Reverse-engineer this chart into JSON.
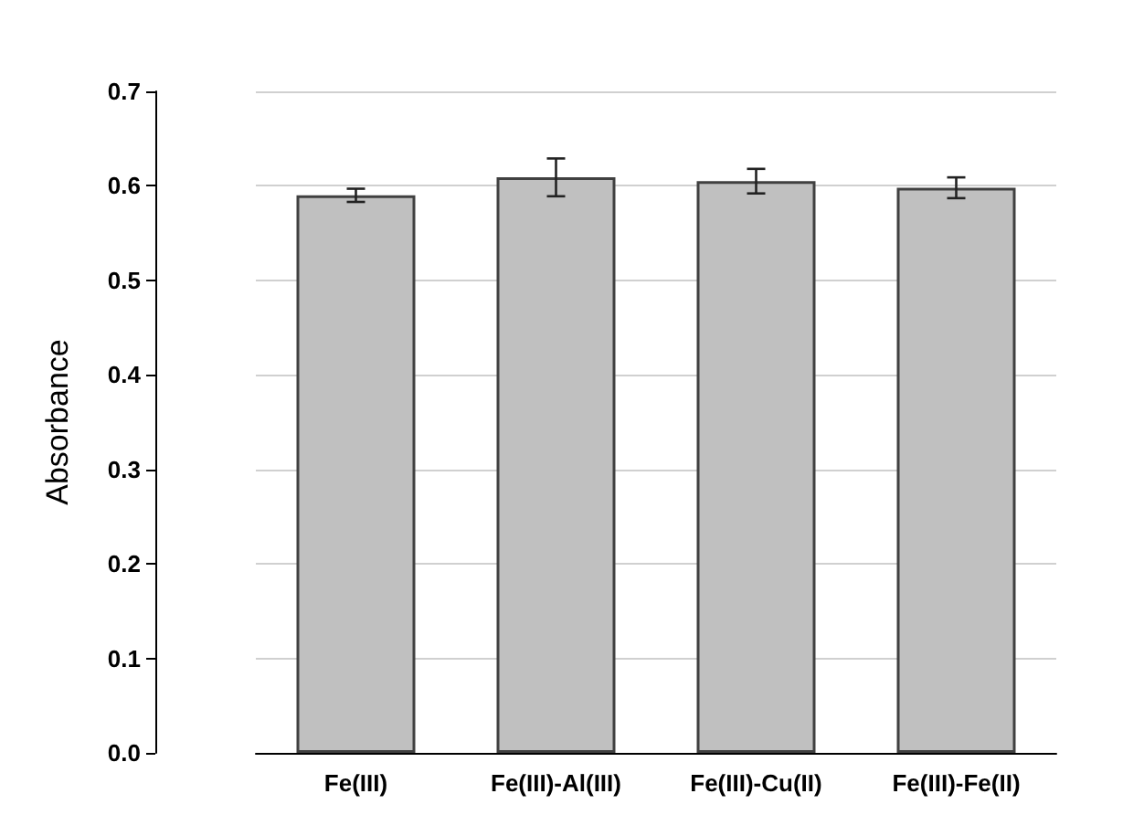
{
  "chart_data": {
    "type": "bar",
    "ylabel": "Absorbance",
    "categories": [
      "Fe(III)",
      "Fe(III)-Al(III)",
      "Fe(III)-Cu(II)",
      "Fe(III)-Fe(II)"
    ],
    "values": [
      0.59,
      0.609,
      0.605,
      0.598
    ],
    "errors": [
      0.007,
      0.02,
      0.013,
      0.011
    ],
    "color": "#c0c0c0",
    "ylim": [
      0,
      0.7
    ],
    "yticks": [
      {
        "value": 0,
        "label": "0.0"
      },
      {
        "value": 0.1,
        "label": "0.1"
      },
      {
        "value": 0.2,
        "label": "0.2"
      },
      {
        "value": 0.3,
        "label": "0.3"
      },
      {
        "value": 0.4,
        "label": "0.4"
      },
      {
        "value": 0.5,
        "label": "0.5"
      },
      {
        "value": 0.6,
        "label": "0.6"
      },
      {
        "value": 0.7,
        "label": "0.7"
      }
    ],
    "grid": "y"
  }
}
